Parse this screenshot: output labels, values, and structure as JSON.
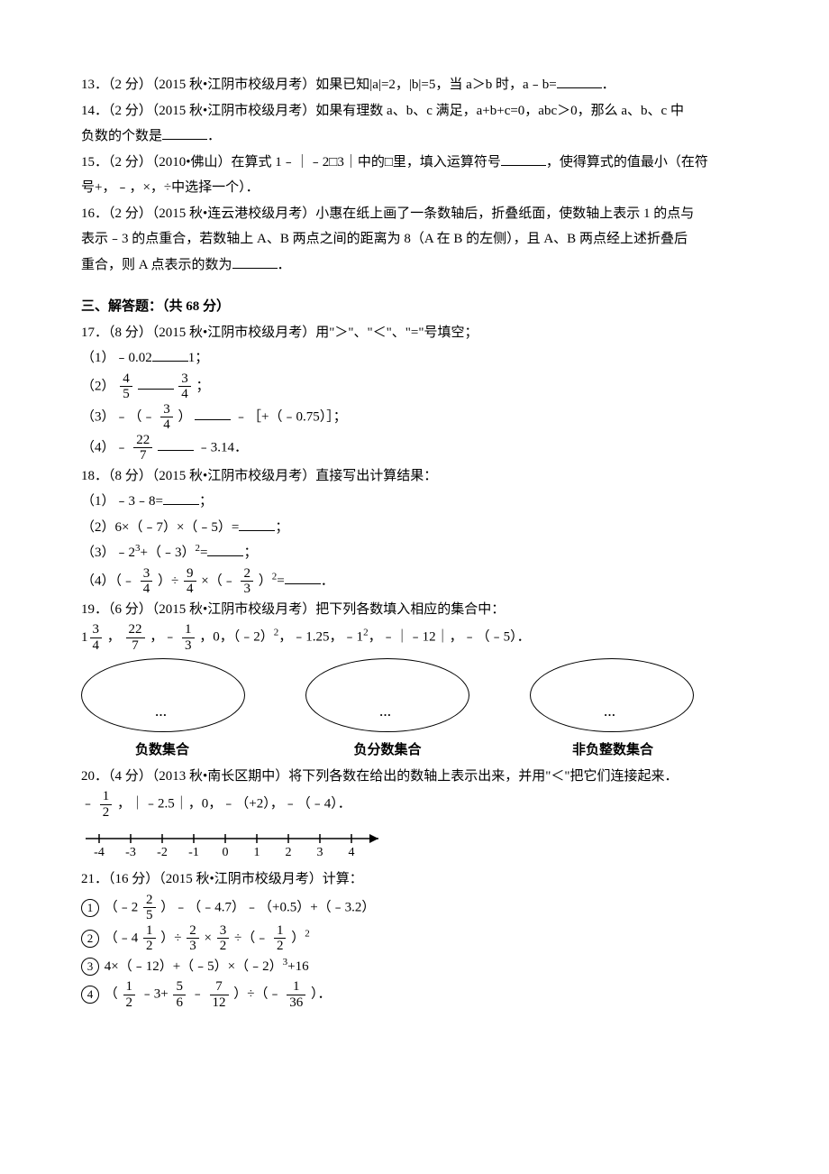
{
  "q13": {
    "num": "13．",
    "pts": "（2 分）",
    "src": "（2015 秋•江阴市校级月考）",
    "text_a": "如果已知|a|=2，|b|=5，当 a＞b 时，a﹣b=",
    "tail": "．"
  },
  "q14": {
    "num": "14．",
    "pts": "（2 分）",
    "src": "（2015 秋•江阴市校级月考）",
    "text_a": "如果有理数 a、b、c 满足，a+b+c=0，abc＞0，那么 a、b、c 中",
    "text_b": "负数的个数是",
    "tail": "．"
  },
  "q15": {
    "num": "15．",
    "pts": "（2 分）",
    "src": "（2010•佛山）",
    "text_a": "在算式 1﹣｜﹣2□3｜中的□里，填入运算符号",
    "text_b": "，使得算式的值最小（在符",
    "text_c": "号+，﹣，×，÷中选择一个）．"
  },
  "q16": {
    "num": "16．",
    "pts": "（2 分）",
    "src": "（2015 秋•连云港校级月考）",
    "text_a": "小惠在纸上画了一条数轴后，折叠纸面，使数轴上表示 1 的点与",
    "text_b": "表示﹣3 的点重合，若数轴上 A、B 两点之间的距离为 8（A 在 B 的左侧），且 A、B 两点经上述折叠后",
    "text_c": "重合，则 A 点表示的数为",
    "tail": "．"
  },
  "sec3": "三、解答题：（共 68 分）",
  "q17": {
    "num": "17．",
    "pts": "（8 分）",
    "src": "（2015 秋•江阴市校级月考）",
    "stem": "用\"＞\"、\"＜\"、\"=\"号填空；",
    "p1a": "（1）﹣0.02",
    "p1b": "1；",
    "p2a": "（2）",
    "p2b": "；",
    "p3a": "（3）﹣（﹣",
    "p3b": "）",
    "p3c": "﹣［+（﹣0.75）］；",
    "p4a": "（4）﹣",
    "p4b": "﹣3.14．",
    "f1n": "4",
    "f1d": "5",
    "f2n": "3",
    "f2d": "4",
    "f3n": "3",
    "f3d": "4",
    "f4n": "22",
    "f4d": "7"
  },
  "q18": {
    "num": "18．",
    "pts": "（8 分）",
    "src": "（2015 秋•江阴市校级月考）",
    "stem": "直接写出计算结果：",
    "p1": "（1）﹣3﹣8=",
    "p1t": "；",
    "p2": "（2）6×（﹣7）×（﹣5）=",
    "p2t": "；",
    "p3a": "（3）﹣2",
    "p3b": "+（﹣3）",
    "p3c": "=",
    "p3t": "；",
    "p4a": "（4）（﹣",
    "p4b": "）÷",
    "p4c": "×（﹣",
    "p4d": "）",
    "p4e": "=",
    "p4t": "．",
    "f1n": "3",
    "f1d": "4",
    "f2n": "9",
    "f2d": "4",
    "f3n": "2",
    "f3d": "3"
  },
  "q19": {
    "num": "19．",
    "pts": "（6 分）",
    "src": "（2015 秋•江阴市校级月考）",
    "stem": "把下列各数填入相应的集合中：",
    "lista": "，",
    "listb": "，﹣",
    "listc": "，0，（﹣2）",
    "listd": "，﹣1.25，﹣1",
    "liste": "，﹣｜﹣12｜，﹣（﹣5）．",
    "m1w": "1",
    "m1n": "3",
    "m1d": "4",
    "f2n": "22",
    "f2d": "7",
    "f3n": "1",
    "f3d": "3",
    "labels": {
      "a": "负数集合",
      "b": "负分数集合",
      "c": "非负整数集合"
    },
    "dots": "…"
  },
  "q20": {
    "num": "20．",
    "pts": "（4 分）",
    "src": "（2013 秋•南长区期中）",
    "stem": "将下列各数在给出的数轴上表示出来，并用\"＜\"把它们连接起来．",
    "la": "﹣",
    "lb": "，｜﹣2.5｜，0，﹣（+2），﹣（﹣4）．",
    "fn": "1",
    "fd": "2",
    "ticks": [
      "-4",
      "-3",
      "-2",
      "-1",
      "0",
      "1",
      "2",
      "3",
      "4"
    ]
  },
  "q21": {
    "num": "21．",
    "pts": "（16 分）",
    "src": "（2015 秋•江阴市校级月考）",
    "stem": "计算：",
    "c1": "1",
    "c2": "2",
    "c3": "3",
    "c4": "4",
    "p1a": "（﹣2",
    "p1b": "）﹣（﹣4.7）﹣（+0.5）+（﹣3.2）",
    "m1n": "2",
    "m1d": "5",
    "p2a": "（﹣4",
    "p2b": "）÷",
    "p2c": "×",
    "p2d": "÷（﹣",
    "p2e": "）",
    "m2n": "1",
    "m2d": "2",
    "f2an": "2",
    "f2ad": "3",
    "f2bn": "3",
    "f2bd": "2",
    "f2cn": "1",
    "f2cd": "2",
    "p3": "4×（﹣12）+（﹣5）×（﹣2）",
    "p3b": "+16",
    "p4a": "（",
    "p4b": "﹣3+",
    "p4c": "﹣",
    "p4d": "）÷（﹣",
    "p4e": "）．",
    "f4an": "1",
    "f4ad": "2",
    "f4bn": "5",
    "f4bd": "6",
    "f4cn": "7",
    "f4cd": "12",
    "f4dn": "1",
    "f4dd": "36"
  }
}
